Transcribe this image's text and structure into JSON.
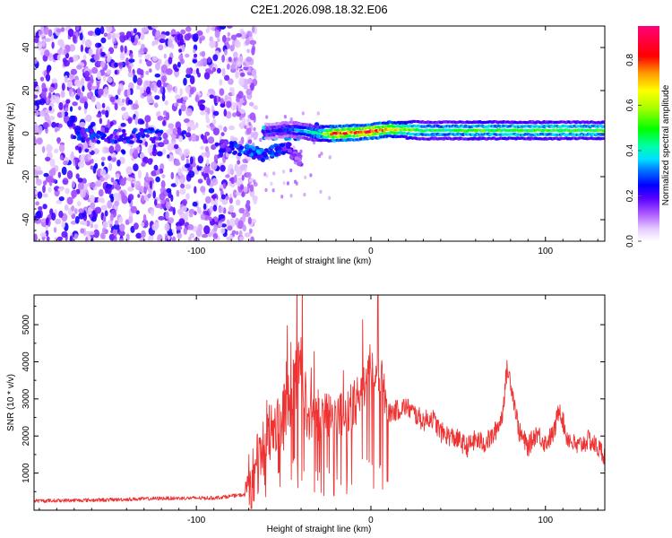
{
  "title": "C2E1.2026.098.18.32.E06",
  "chart_data": [
    {
      "type": "heatmap",
      "xlabel": "Height of straight line (km)",
      "ylabel": "Frequency (Hz)",
      "xlim": [
        -193,
        134
      ],
      "ylim": [
        -50,
        50
      ],
      "x_ticks": [
        -100,
        0,
        100
      ],
      "x_tick_labels": [
        "-100",
        "0",
        "100"
      ],
      "y_ticks": [
        -40,
        -20,
        0,
        20,
        40
      ],
      "y_tick_labels": [
        "-40",
        "-20",
        "0",
        "20",
        "40"
      ],
      "colorbar": {
        "label": "Normalized spectral amplitude",
        "range": [
          0,
          0.95
        ],
        "ticks": [
          0,
          0.2,
          0.4,
          0.6,
          0.8
        ],
        "tick_labels": [
          "0.0",
          "0.2",
          "0.4",
          "0.6",
          "0.8"
        ]
      },
      "features": {
        "noise_region_x": [
          -193,
          -72
        ],
        "noise_amplitude": [
          0.05,
          0.25
        ],
        "cluster_region": {
          "x": [
            -170,
            -120
          ],
          "freq": -1,
          "amplitude": 0.25
        },
        "dispersed_arc": [
          {
            "x": -82,
            "freq": -6,
            "amp": 0.22
          },
          {
            "x": -70,
            "freq": -8,
            "amp": 0.3
          },
          {
            "x": -62,
            "freq": -10,
            "amp": 0.3
          },
          {
            "x": -55,
            "freq": -8,
            "amp": 0.28
          },
          {
            "x": -48,
            "freq": -6,
            "amp": 0.22
          },
          {
            "x": -42,
            "freq": -12,
            "amp": 0.15
          }
        ],
        "main_line": [
          {
            "x": -60,
            "freq": 1,
            "amp": 0.2
          },
          {
            "x": -45,
            "freq": 2,
            "amp": 0.28
          },
          {
            "x": -30,
            "freq": 0,
            "amp": 0.45
          },
          {
            "x": -20,
            "freq": 0,
            "amp": 0.8
          },
          {
            "x": -10,
            "freq": 0.5,
            "amp": 0.75
          },
          {
            "x": 0,
            "freq": 1,
            "amp": 0.85
          },
          {
            "x": 10,
            "freq": 2,
            "amp": 0.7
          },
          {
            "x": 30,
            "freq": 1.5,
            "amp": 0.45
          },
          {
            "x": 60,
            "freq": 1.5,
            "amp": 0.5
          },
          {
            "x": 90,
            "freq": 1.5,
            "amp": 0.5
          },
          {
            "x": 134,
            "freq": 1.5,
            "amp": 0.5
          }
        ]
      }
    },
    {
      "type": "line",
      "xlabel": "Height of straight line (km)",
      "ylabel": "SNR (10 * v/v)",
      "xlim": [
        -193,
        134
      ],
      "ylim": [
        0,
        5800
      ],
      "x_ticks": [
        -100,
        0,
        100
      ],
      "x_tick_labels": [
        "-100",
        "0",
        "100"
      ],
      "y_ticks": [
        1000,
        2000,
        3000,
        4000,
        5000
      ],
      "y_tick_labels": [
        "1000",
        "2000",
        "3000",
        "4000",
        "5000"
      ],
      "color": "#ee3333",
      "series": [
        {
          "name": "SNR",
          "x": [
            -193,
            -150,
            -120,
            -90,
            -72,
            -66,
            -62,
            -58,
            -54,
            -50,
            -45,
            -40,
            -38,
            -35,
            -30,
            -25,
            -20,
            -15,
            -10,
            -5,
            0,
            5,
            10,
            15,
            20,
            25,
            30,
            35,
            40,
            45,
            50,
            55,
            60,
            65,
            70,
            75,
            78,
            80,
            85,
            90,
            95,
            100,
            105,
            108,
            112,
            118,
            125,
            134
          ],
          "values": [
            230,
            260,
            300,
            310,
            400,
            1000,
            1700,
            2000,
            2200,
            2500,
            3200,
            4000,
            3000,
            2500,
            2500,
            2600,
            2500,
            2600,
            2800,
            3300,
            3900,
            3700,
            2600,
            2700,
            2800,
            2600,
            2400,
            2500,
            2100,
            2000,
            1900,
            1700,
            1900,
            1800,
            2000,
            2500,
            3800,
            3500,
            2100,
            1700,
            2100,
            1800,
            2100,
            2800,
            2000,
            1700,
            1900,
            1500
          ]
        }
      ],
      "signal_start_x": -70,
      "noise_amplitude_by_region": [
        {
          "x": [
            -193,
            -72
          ],
          "amp": 100
        },
        {
          "x": [
            -72,
            -32
          ],
          "amp": 900
        },
        {
          "x": [
            -32,
            8
          ],
          "amp": 650
        },
        {
          "x": [
            8,
            134
          ],
          "amp": 280
        }
      ]
    }
  ]
}
